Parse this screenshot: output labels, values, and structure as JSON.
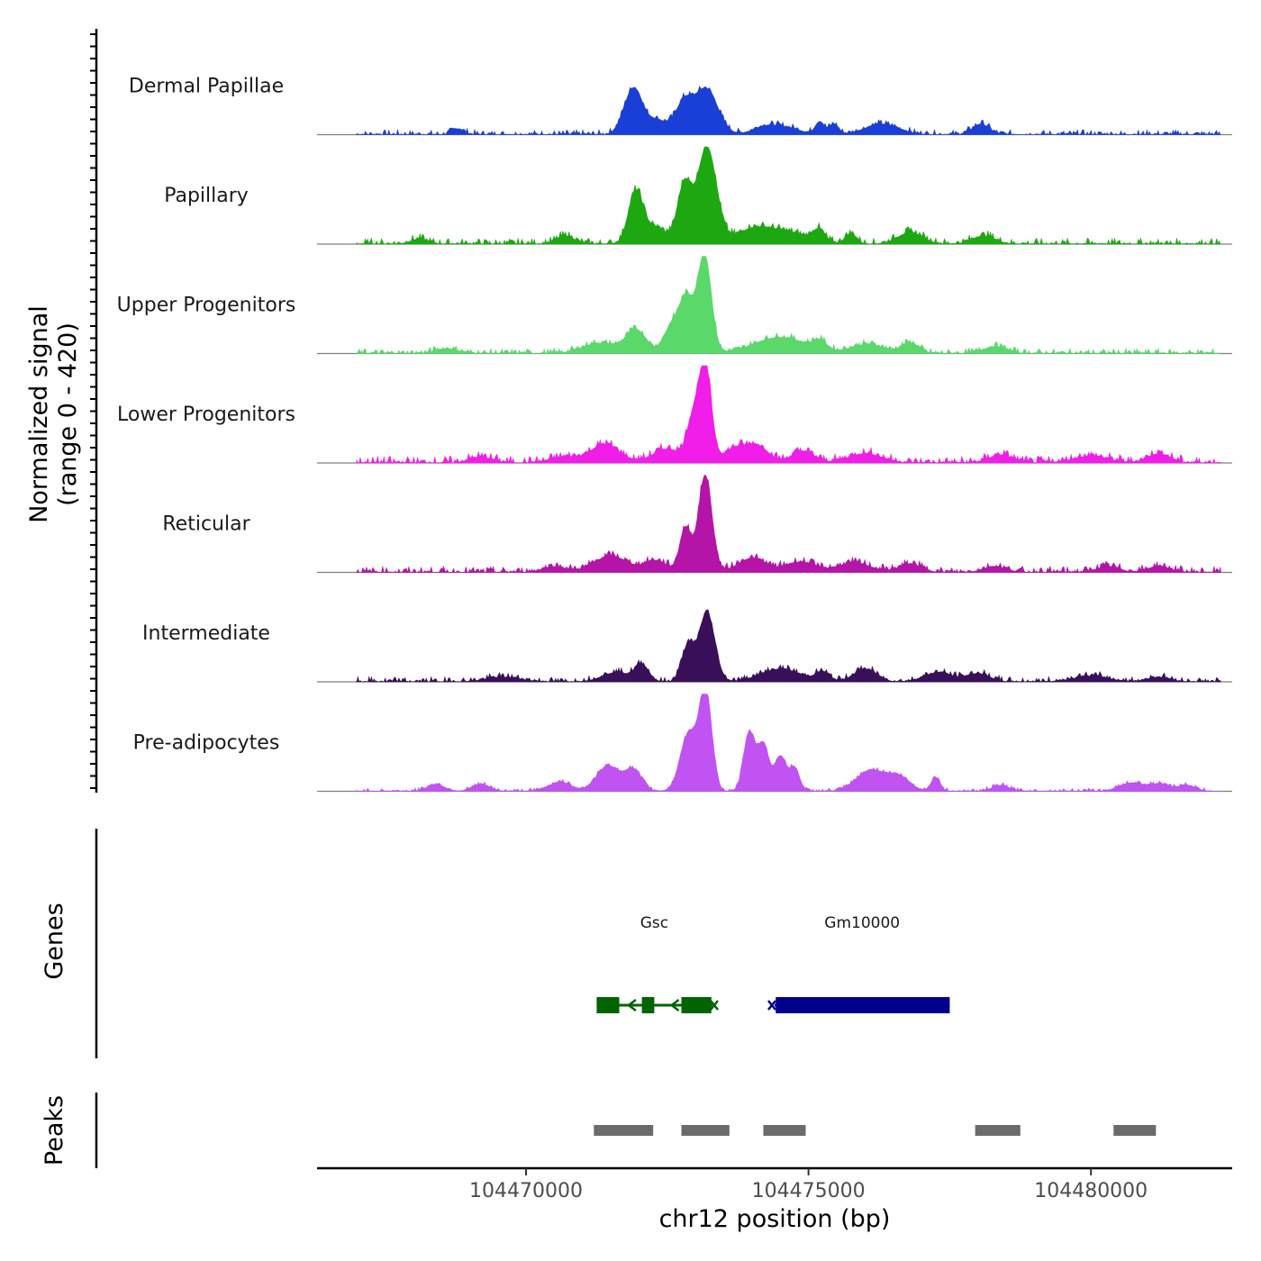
{
  "chart_data": {
    "type": "area",
    "title": "",
    "ylabel_line1": "Normalized signal",
    "ylabel_line2": "(range 0 - 420)",
    "xlabel": "chr12 position (bp)",
    "xlim": [
      104466300,
      104482500
    ],
    "x_ticks": [
      104470000,
      104475000,
      104480000
    ],
    "x_tick_labels": [
      "104470000",
      "104475000",
      "104480000"
    ],
    "ylim": [
      0,
      420
    ],
    "genes_label": "Genes",
    "peaks_label": "Peaks",
    "tracks": [
      {
        "name": "Dermal Papillae",
        "color": "#1a3fd6",
        "peaks": [
          [
            104471850,
            150,
            150
          ],
          [
            104471980,
            70,
            120
          ],
          [
            104472800,
            100,
            130
          ],
          [
            104473180,
            200,
            210
          ],
          [
            104472250,
            55,
            160
          ],
          [
            104472600,
            40,
            200
          ],
          [
            104475200,
            55,
            80
          ],
          [
            104475450,
            45,
            80
          ],
          [
            104476300,
            45,
            300
          ],
          [
            104478050,
            45,
            150
          ],
          [
            104468800,
            25,
            100
          ],
          [
            104474200,
            30,
            200
          ],
          [
            104474600,
            30,
            250
          ]
        ],
        "base": 10
      },
      {
        "name": "Papillary",
        "color": "#1da812",
        "peaks": [
          [
            104471940,
            220,
            130
          ],
          [
            104472800,
            250,
            120
          ],
          [
            104473200,
            420,
            170
          ],
          [
            104472300,
            70,
            200
          ],
          [
            104474000,
            55,
            300
          ],
          [
            104474600,
            50,
            400
          ],
          [
            104475180,
            50,
            100
          ],
          [
            104475750,
            45,
            100
          ],
          [
            104476800,
            50,
            220
          ],
          [
            104478100,
            35,
            200
          ],
          [
            104470700,
            35,
            150
          ],
          [
            104468100,
            20,
            150
          ]
        ],
        "base": 12
      },
      {
        "name": "Upper Progenitors",
        "color": "#5ad86a",
        "peaks": [
          [
            104473160,
            420,
            120
          ],
          [
            104472840,
            230,
            130
          ],
          [
            104471950,
            100,
            180
          ],
          [
            104472570,
            110,
            140
          ],
          [
            104474500,
            70,
            450
          ],
          [
            104475200,
            40,
            120
          ],
          [
            104476050,
            40,
            300
          ],
          [
            104476800,
            45,
            150
          ],
          [
            104471300,
            45,
            300
          ],
          [
            104468600,
            20,
            200
          ],
          [
            104478300,
            30,
            200
          ]
        ],
        "base": 10
      },
      {
        "name": "Lower Progenitors",
        "color": "#f01ee8",
        "peaks": [
          [
            104473170,
            420,
            110
          ],
          [
            104472950,
            170,
            110
          ],
          [
            104472500,
            60,
            250
          ],
          [
            104471400,
            80,
            250
          ],
          [
            104473700,
            60,
            200
          ],
          [
            104474100,
            70,
            200
          ],
          [
            104474900,
            50,
            200
          ],
          [
            104476000,
            40,
            300
          ],
          [
            104478400,
            35,
            200
          ],
          [
            104480000,
            30,
            300
          ],
          [
            104481200,
            40,
            200
          ],
          [
            104469200,
            25,
            200
          ],
          [
            104470700,
            25,
            250
          ]
        ],
        "base": 14
      },
      {
        "name": "Reticular",
        "color": "#b514a8",
        "peaks": [
          [
            104473170,
            420,
            120
          ],
          [
            104472820,
            190,
            100
          ],
          [
            104471500,
            70,
            300
          ],
          [
            104472300,
            50,
            200
          ],
          [
            104474000,
            60,
            250
          ],
          [
            104474850,
            45,
            250
          ],
          [
            104475800,
            40,
            300
          ],
          [
            104476800,
            35,
            200
          ],
          [
            104478300,
            25,
            200
          ],
          [
            104480300,
            25,
            200
          ],
          [
            104481200,
            25,
            200
          ],
          [
            104470500,
            25,
            200
          ]
        ],
        "base": 12
      },
      {
        "name": "Intermediate",
        "color": "#3a0f5a",
        "peaks": [
          [
            104473200,
            300,
            140
          ],
          [
            104472860,
            150,
            110
          ],
          [
            104472050,
            70,
            120
          ],
          [
            104471600,
            40,
            250
          ],
          [
            104474500,
            55,
            350
          ],
          [
            104475250,
            40,
            120
          ],
          [
            104476000,
            55,
            200
          ],
          [
            104477300,
            40,
            250
          ],
          [
            104478000,
            35,
            200
          ],
          [
            104480000,
            25,
            300
          ],
          [
            104469600,
            20,
            300
          ],
          [
            104481200,
            20,
            200
          ]
        ],
        "base": 10
      },
      {
        "name": "Pre-adipocytes",
        "color": "#c153f2",
        "peaks": [
          [
            104473180,
            420,
            110
          ],
          [
            104472880,
            250,
            150
          ],
          [
            104471450,
            110,
            200
          ],
          [
            104471900,
            90,
            150
          ],
          [
            104473950,
            250,
            100
          ],
          [
            104474200,
            200,
            100
          ],
          [
            104474500,
            150,
            100
          ],
          [
            104474750,
            100,
            90
          ],
          [
            104476100,
            90,
            250
          ],
          [
            104476600,
            60,
            200
          ],
          [
            104477250,
            60,
            80
          ],
          [
            104470600,
            40,
            200
          ],
          [
            104468400,
            30,
            150
          ],
          [
            104469200,
            30,
            150
          ],
          [
            104480700,
            35,
            200
          ],
          [
            104481200,
            30,
            200
          ],
          [
            104481700,
            25,
            150
          ],
          [
            104478400,
            25,
            150
          ]
        ],
        "base": 6
      }
    ],
    "genes": [
      {
        "name": "Gsc",
        "strand": "-",
        "color": "#006400",
        "start": 104471250,
        "end": 104473300,
        "exons": [
          [
            104471250,
            104471650
          ],
          [
            104472050,
            104472270
          ],
          [
            104472750,
            104473280
          ]
        ],
        "label_x": 104472270
      },
      {
        "name": "Gm10000",
        "strand": "+",
        "color": "#00008b",
        "start": 104474400,
        "end": 104477500,
        "exons": [
          [
            104474420,
            104477500
          ]
        ],
        "label_x": 104475950
      }
    ],
    "peak_regions": [
      [
        104471200,
        104472250
      ],
      [
        104472750,
        104473600
      ],
      [
        104474200,
        104474950
      ],
      [
        104477950,
        104478750
      ],
      [
        104480400,
        104481150
      ]
    ]
  }
}
